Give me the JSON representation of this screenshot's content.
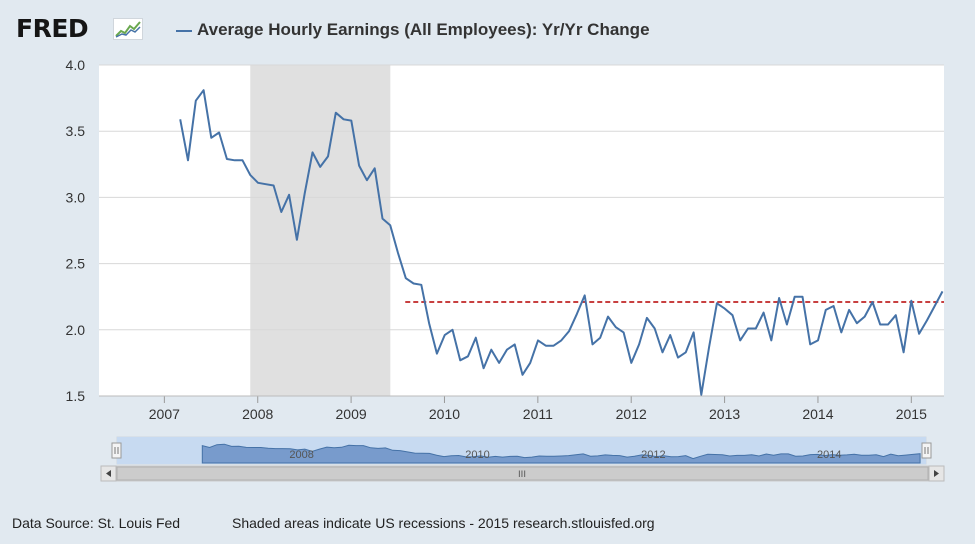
{
  "header": {
    "logo_text": "FRED",
    "logo_icon": "line-graph-icon",
    "series_title": "Average Hourly Earnings (All Employees): Yr/Yr Change"
  },
  "colors": {
    "background": "#e1e9f0",
    "plot_background": "#ffffff",
    "series_line": "#4572a7",
    "recession_shade": "#e0e0e0",
    "reference_line": "#b50000",
    "navigator_fill": "#6a8fc5",
    "navigator_selected": "#c7daf1"
  },
  "footer": {
    "source": "Data Source: St. Louis Fed",
    "note": "Shaded areas indicate US recessions - 2015 research.stlouisfed.org"
  },
  "navigator": {
    "tick_labels": [
      "2008",
      "2010",
      "2012",
      "2014"
    ],
    "scroll_left_icon": "triangle-left-icon",
    "scroll_right_icon": "triangle-right-icon",
    "scroll_grip": "III"
  },
  "chart_data": {
    "type": "line",
    "title": "Average Hourly Earnings (All Employees): Yr/Yr Change",
    "xlabel": "",
    "ylabel": "",
    "xlim": [
      2006.3,
      2015.35
    ],
    "ylim": [
      1.5,
      4.0
    ],
    "y_ticks": [
      1.5,
      2.0,
      2.5,
      3.0,
      3.5,
      4.0
    ],
    "y_tick_labels": [
      "1.5",
      "2.0",
      "2.5",
      "3.0",
      "3.5",
      "4.0"
    ],
    "x_ticks": [
      2007,
      2008,
      2009,
      2010,
      2011,
      2012,
      2013,
      2014,
      2015
    ],
    "x_tick_labels": [
      "2007",
      "2008",
      "2009",
      "2010",
      "2011",
      "2012",
      "2013",
      "2014",
      "2015"
    ],
    "grid": true,
    "recession": {
      "start": 2007.92,
      "end": 2009.42
    },
    "reference_line": {
      "y": 2.21,
      "x_start": 2009.58,
      "x_end": 2015.35,
      "style": "dashed"
    },
    "series": [
      {
        "name": "Average Hourly Earnings (All Employees): Yr/Yr Change",
        "start": 2007.17,
        "step": 0.0833,
        "values": [
          3.59,
          3.28,
          3.73,
          3.81,
          3.45,
          3.49,
          3.29,
          3.28,
          3.28,
          3.17,
          3.11,
          3.1,
          3.09,
          2.89,
          3.02,
          2.68,
          3.03,
          3.34,
          3.23,
          3.31,
          3.64,
          3.59,
          3.58,
          3.24,
          3.13,
          3.22,
          2.84,
          2.79,
          2.58,
          2.39,
          2.35,
          2.34,
          2.05,
          1.82,
          1.96,
          2.0,
          1.77,
          1.8,
          1.94,
          1.71,
          1.85,
          1.75,
          1.85,
          1.89,
          1.66,
          1.75,
          1.92,
          1.88,
          1.88,
          1.92,
          1.99,
          2.12,
          2.26,
          1.89,
          1.94,
          2.1,
          2.02,
          1.98,
          1.75,
          1.89,
          2.09,
          2.01,
          1.83,
          1.96,
          1.79,
          1.83,
          1.98,
          1.51,
          1.87,
          2.2,
          2.16,
          2.11,
          1.92,
          2.01,
          2.01,
          2.13,
          1.92,
          2.24,
          2.04,
          2.25,
          2.25,
          1.89,
          1.92,
          2.15,
          2.18,
          1.98,
          2.15,
          2.05,
          2.1,
          2.21,
          2.04,
          2.04,
          2.11,
          1.83,
          2.22,
          1.97,
          2.07,
          2.18,
          2.29
        ]
      }
    ]
  }
}
